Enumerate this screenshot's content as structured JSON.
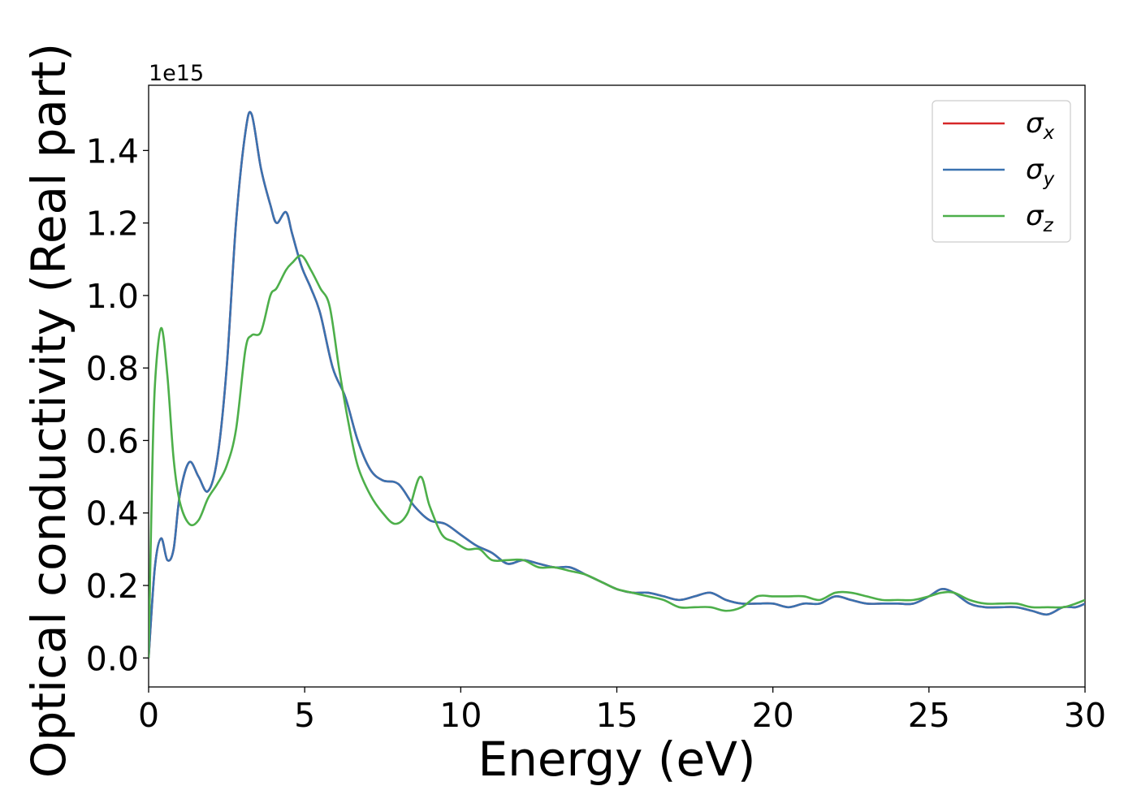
{
  "chart_data": {
    "type": "line",
    "title": "",
    "xlabel": "Energy (eV)",
    "ylabel": "Optical conductivity (Real part)",
    "y_offset_text": "1e15",
    "xlim": [
      0,
      30
    ],
    "ylim": [
      -0.08,
      1.58
    ],
    "x_ticks": [
      "0",
      "5",
      "10",
      "15",
      "20",
      "25",
      "30"
    ],
    "y_ticks": [
      "0.0",
      "0.2",
      "0.4",
      "0.6",
      "0.8",
      "1.0",
      "1.2",
      "1.4"
    ],
    "grid": false,
    "legend_position": "top-right",
    "series": [
      {
        "name": "σx",
        "symbol": "σ",
        "subscript": "x",
        "color": "#d62728",
        "x": [
          0,
          0.2,
          0.4,
          0.6,
          0.8,
          1.0,
          1.3,
          1.6,
          1.9,
          2.2,
          2.5,
          2.8,
          3.1,
          3.3,
          3.6,
          3.9,
          4.1,
          4.4,
          4.6,
          4.9,
          5.2,
          5.5,
          5.9,
          6.3,
          6.7,
          7.1,
          7.5,
          8.0,
          8.5,
          9.0,
          9.5,
          10.0,
          10.5,
          11.0,
          11.5,
          12.0,
          12.5,
          13.0,
          13.5,
          14.0,
          14.5,
          15.0,
          15.5,
          16.0,
          16.5,
          17.0,
          17.5,
          18.0,
          18.5,
          19.0,
          19.5,
          20.0,
          20.5,
          21.0,
          21.5,
          22.0,
          22.5,
          23.0,
          23.5,
          24.0,
          24.5,
          25.0,
          25.4,
          25.8,
          26.3,
          26.8,
          27.3,
          27.8,
          28.3,
          28.8,
          29.3,
          29.7,
          30.0
        ],
        "y": [
          0.0,
          0.25,
          0.33,
          0.27,
          0.3,
          0.45,
          0.54,
          0.5,
          0.46,
          0.55,
          0.8,
          1.2,
          1.45,
          1.5,
          1.35,
          1.25,
          1.2,
          1.23,
          1.17,
          1.08,
          1.02,
          0.95,
          0.8,
          0.72,
          0.6,
          0.52,
          0.49,
          0.48,
          0.42,
          0.38,
          0.37,
          0.34,
          0.31,
          0.29,
          0.26,
          0.27,
          0.26,
          0.25,
          0.25,
          0.23,
          0.21,
          0.19,
          0.18,
          0.18,
          0.17,
          0.16,
          0.17,
          0.18,
          0.16,
          0.15,
          0.15,
          0.15,
          0.14,
          0.15,
          0.15,
          0.17,
          0.16,
          0.15,
          0.15,
          0.15,
          0.15,
          0.17,
          0.19,
          0.18,
          0.15,
          0.14,
          0.14,
          0.14,
          0.13,
          0.12,
          0.14,
          0.14,
          0.15
        ]
      },
      {
        "name": "σy",
        "symbol": "σ",
        "subscript": "y",
        "color": "#3a72b0",
        "x": [
          0,
          0.2,
          0.4,
          0.6,
          0.8,
          1.0,
          1.3,
          1.6,
          1.9,
          2.2,
          2.5,
          2.8,
          3.1,
          3.3,
          3.6,
          3.9,
          4.1,
          4.4,
          4.6,
          4.9,
          5.2,
          5.5,
          5.9,
          6.3,
          6.7,
          7.1,
          7.5,
          8.0,
          8.5,
          9.0,
          9.5,
          10.0,
          10.5,
          11.0,
          11.5,
          12.0,
          12.5,
          13.0,
          13.5,
          14.0,
          14.5,
          15.0,
          15.5,
          16.0,
          16.5,
          17.0,
          17.5,
          18.0,
          18.5,
          19.0,
          19.5,
          20.0,
          20.5,
          21.0,
          21.5,
          22.0,
          22.5,
          23.0,
          23.5,
          24.0,
          24.5,
          25.0,
          25.4,
          25.8,
          26.3,
          26.8,
          27.3,
          27.8,
          28.3,
          28.8,
          29.3,
          29.7,
          30.0
        ],
        "y": [
          0.0,
          0.25,
          0.33,
          0.27,
          0.3,
          0.45,
          0.54,
          0.5,
          0.46,
          0.55,
          0.8,
          1.2,
          1.45,
          1.5,
          1.35,
          1.25,
          1.2,
          1.23,
          1.17,
          1.08,
          1.02,
          0.95,
          0.8,
          0.72,
          0.6,
          0.52,
          0.49,
          0.48,
          0.42,
          0.38,
          0.37,
          0.34,
          0.31,
          0.29,
          0.26,
          0.27,
          0.26,
          0.25,
          0.25,
          0.23,
          0.21,
          0.19,
          0.18,
          0.18,
          0.17,
          0.16,
          0.17,
          0.18,
          0.16,
          0.15,
          0.15,
          0.15,
          0.14,
          0.15,
          0.15,
          0.17,
          0.16,
          0.15,
          0.15,
          0.15,
          0.15,
          0.17,
          0.19,
          0.18,
          0.15,
          0.14,
          0.14,
          0.14,
          0.13,
          0.12,
          0.14,
          0.14,
          0.15
        ]
      },
      {
        "name": "σz",
        "symbol": "σ",
        "subscript": "z",
        "color": "#4daf4a",
        "x": [
          0,
          0.1,
          0.2,
          0.4,
          0.6,
          0.8,
          1.0,
          1.3,
          1.6,
          1.9,
          2.2,
          2.5,
          2.8,
          3.1,
          3.3,
          3.6,
          3.9,
          4.1,
          4.4,
          4.6,
          4.9,
          5.2,
          5.5,
          5.8,
          6.1,
          6.4,
          6.7,
          7.1,
          7.5,
          7.9,
          8.3,
          8.7,
          9.0,
          9.4,
          9.8,
          10.2,
          10.6,
          11.0,
          11.5,
          12.0,
          12.5,
          13.0,
          13.5,
          14.0,
          14.5,
          15.0,
          15.5,
          16.0,
          16.5,
          17.0,
          17.5,
          18.0,
          18.5,
          19.0,
          19.5,
          20.0,
          20.5,
          21.0,
          21.5,
          22.0,
          22.5,
          23.0,
          23.5,
          24.0,
          24.5,
          25.0,
          25.4,
          25.8,
          26.3,
          26.8,
          27.3,
          27.8,
          28.3,
          28.8,
          29.3,
          29.7,
          30.0
        ],
        "y": [
          0.0,
          0.45,
          0.75,
          0.91,
          0.78,
          0.55,
          0.43,
          0.37,
          0.38,
          0.44,
          0.48,
          0.53,
          0.63,
          0.85,
          0.89,
          0.9,
          1.0,
          1.02,
          1.07,
          1.09,
          1.11,
          1.07,
          1.02,
          0.97,
          0.8,
          0.65,
          0.53,
          0.45,
          0.4,
          0.37,
          0.4,
          0.5,
          0.42,
          0.34,
          0.32,
          0.3,
          0.3,
          0.27,
          0.27,
          0.27,
          0.25,
          0.25,
          0.24,
          0.23,
          0.21,
          0.19,
          0.18,
          0.17,
          0.16,
          0.14,
          0.14,
          0.14,
          0.13,
          0.14,
          0.17,
          0.17,
          0.17,
          0.17,
          0.16,
          0.18,
          0.18,
          0.17,
          0.16,
          0.16,
          0.16,
          0.17,
          0.18,
          0.18,
          0.16,
          0.15,
          0.15,
          0.15,
          0.14,
          0.14,
          0.14,
          0.15,
          0.16
        ]
      }
    ]
  }
}
